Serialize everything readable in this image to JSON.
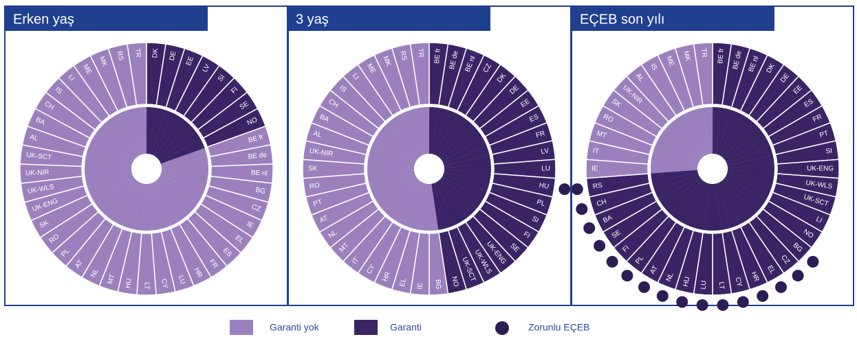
{
  "panels": [
    {
      "title": "Erken yaş",
      "guaranteed": [
        "DK",
        "DE",
        "EE",
        "LV",
        "SI",
        "FI",
        "SE",
        "NO"
      ],
      "not_guaranteed": [
        "BE fr",
        "BE de",
        "BE nl",
        "BG",
        "CZ",
        "IE",
        "EL",
        "ES",
        "FR",
        "HR",
        "LU",
        "CY",
        "LT",
        "HU",
        "MT",
        "NL",
        "AT",
        "PL",
        "RO",
        "SK",
        "UK-ENG",
        "UK-WLS",
        "UK-NIR",
        "UK-SCT",
        "AL",
        "BA",
        "CH",
        "IS",
        "LI",
        "ME",
        "MK",
        "RS",
        "TR"
      ],
      "compulsory": []
    },
    {
      "title": "3  yaş",
      "guaranteed": [
        "BE fr",
        "BE de",
        "BE nl",
        "CZ",
        "DK",
        "DE",
        "EE",
        "ES",
        "FR",
        "LV",
        "LU",
        "HU",
        "PL",
        "SI",
        "FI",
        "SE",
        "UK-ENG",
        "UK-WLS",
        "UK-SCT",
        "NO"
      ],
      "not_guaranteed": [
        "BG",
        "IE",
        "EL",
        "HR",
        "CY",
        "IT",
        "MT",
        "NL",
        "AT",
        "PT",
        "RO",
        "SK",
        "UK-NIR",
        "AL",
        "BA",
        "CH",
        "IS",
        "LI",
        "ME",
        "MK",
        "RS",
        "TR"
      ],
      "compulsory": [
        "HU"
      ]
    },
    {
      "title": "EÇEB son yılı",
      "guaranteed": [
        "BE fr",
        "BE de",
        "BE nl",
        "DK",
        "DE",
        "EE",
        "ES",
        "FR",
        "PT",
        "SI",
        "UK-ENG",
        "UK-WLS",
        "UK-SCT",
        "LI",
        "NO",
        "BG",
        "CZ",
        "EL",
        "HR",
        "CY",
        "LT",
        "LU",
        "HU",
        "NL",
        "AT",
        "PL",
        "FI",
        "SE",
        "BA",
        "CH",
        "RS"
      ],
      "not_guaranteed": [
        "IE",
        "IT",
        "MT",
        "RO",
        "SK",
        "UK-NIR",
        "AL",
        "IS",
        "ME",
        "MK",
        "TR"
      ],
      "compulsory": [
        "RS",
        "CH",
        "BA",
        "SE",
        "FI",
        "PL",
        "AT",
        "NL",
        "HU",
        "LU",
        "LT",
        "CY",
        "HR",
        "EL",
        "CZ",
        "BG"
      ]
    }
  ],
  "colors": {
    "not_guaranteed": "#9b80bd",
    "guaranteed": "#3a2465",
    "compulsory": "#2c1d57",
    "frame": "#1f3f8f"
  },
  "legend": {
    "not_guaranteed": "Garanti yok",
    "guaranteed": "Garanti",
    "compulsory": "Zorunlu EÇEB"
  }
}
